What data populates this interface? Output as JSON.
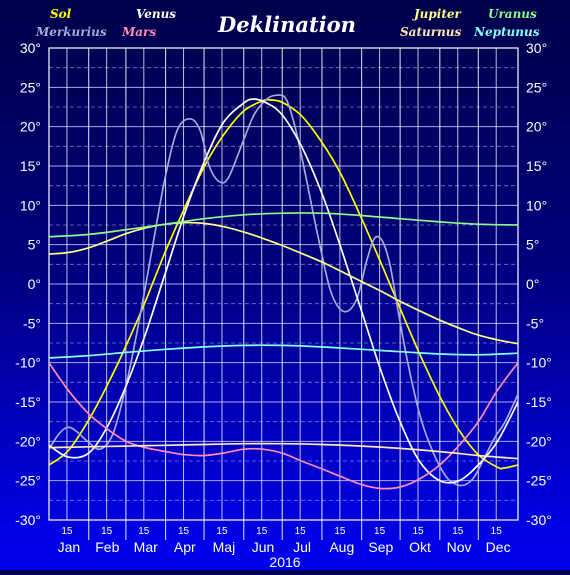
{
  "chart_data": {
    "type": "line",
    "title": "Deklination",
    "xlabel": "2016",
    "ylim": [
      -30,
      30
    ],
    "y_ticks": [
      "30°",
      "25°",
      "20°",
      "15°",
      "10°",
      "5°",
      "0°",
      "-5°",
      "-10°",
      "-15°",
      "-20°",
      "-25°",
      "-30°"
    ],
    "y_tick_values": [
      30,
      25,
      20,
      15,
      10,
      5,
      0,
      -5,
      -10,
      -15,
      -20,
      -25,
      -30
    ],
    "months": [
      "Jan",
      "Feb",
      "Mar",
      "Apr",
      "Maj",
      "Jun",
      "Jul",
      "Aug",
      "Sep",
      "Okt",
      "Nov",
      "Dec"
    ],
    "midmonth_label": "15",
    "grid": true,
    "x_unit": "day of year 2016",
    "xlim": [
      0,
      366
    ],
    "series": [
      {
        "name": "Sol",
        "color": "#ffff00",
        "x": [
          0,
          15,
          31,
          46,
          60,
          75,
          91,
          106,
          121,
          136,
          152,
          167,
          172,
          182,
          197,
          213,
          228,
          244,
          259,
          266,
          274,
          289,
          305,
          320,
          335,
          350,
          355,
          366
        ],
        "values": [
          -23.0,
          -21.2,
          -17.3,
          -12.7,
          -7.9,
          -2.3,
          4.2,
          9.7,
          14.9,
          18.9,
          22.0,
          23.3,
          23.4,
          23.1,
          21.4,
          18.0,
          13.9,
          8.3,
          2.7,
          0.0,
          -3.1,
          -8.8,
          -14.3,
          -18.6,
          -21.7,
          -23.3,
          -23.4,
          -23.0
        ]
      },
      {
        "name": "Merkurius",
        "color": "#a8a8d8",
        "x": [
          0,
          8,
          15,
          22,
          30,
          40,
          50,
          60,
          70,
          80,
          90,
          100,
          110,
          118,
          125,
          133,
          140,
          150,
          160,
          170,
          178,
          185,
          192,
          200,
          210,
          220,
          230,
          240,
          248,
          254,
          260,
          266,
          272,
          280,
          290,
          300,
          310,
          318,
          325,
          332,
          340,
          348,
          356,
          366
        ],
        "values": [
          -21.0,
          -19.0,
          -18.2,
          -18.8,
          -20.0,
          -21.0,
          -19.0,
          -13.0,
          -5.0,
          4.0,
          13.0,
          19.5,
          21.0,
          19.5,
          15.0,
          13.0,
          13.5,
          17.5,
          21.5,
          23.5,
          24.0,
          23.5,
          20.0,
          14.0,
          6.0,
          -1.0,
          -3.5,
          -2.0,
          3.0,
          5.8,
          5.5,
          2.5,
          -3.0,
          -10.0,
          -17.0,
          -21.5,
          -24.5,
          -25.5,
          -25.5,
          -24.5,
          -22.0,
          -19.5,
          -17.5,
          -14.0
        ]
      },
      {
        "name": "Venus",
        "color": "#ffffff",
        "x": [
          0,
          15,
          31,
          46,
          60,
          75,
          91,
          106,
          121,
          136,
          152,
          160,
          170,
          182,
          197,
          213,
          228,
          244,
          259,
          274,
          289,
          305,
          320,
          335,
          350,
          366
        ],
        "values": [
          -20.5,
          -22.0,
          -21.5,
          -18.0,
          -13.0,
          -6.5,
          1.5,
          9.0,
          15.5,
          20.5,
          23.0,
          23.5,
          23.0,
          21.5,
          17.5,
          11.5,
          4.5,
          -3.5,
          -11.0,
          -17.5,
          -22.5,
          -25.0,
          -25.0,
          -23.0,
          -20.0,
          -15.0
        ]
      },
      {
        "name": "Mars",
        "color": "#ff8cb4",
        "x": [
          0,
          15,
          31,
          46,
          60,
          75,
          91,
          106,
          121,
          136,
          152,
          167,
          182,
          197,
          213,
          228,
          244,
          259,
          274,
          289,
          305,
          320,
          335,
          350,
          366
        ],
        "values": [
          -10.0,
          -13.5,
          -16.5,
          -18.5,
          -20.0,
          -20.8,
          -21.3,
          -21.7,
          -21.8,
          -21.5,
          -21.0,
          -21.0,
          -21.5,
          -22.5,
          -23.5,
          -24.5,
          -25.5,
          -26.0,
          -25.8,
          -24.8,
          -23.0,
          -20.5,
          -17.5,
          -13.5,
          -10.0
        ]
      },
      {
        "name": "Jupiter",
        "color": "#ffff88",
        "x": [
          0,
          15,
          31,
          46,
          60,
          75,
          91,
          106,
          121,
          136,
          152,
          167,
          182,
          197,
          213,
          228,
          244,
          259,
          274,
          289,
          305,
          320,
          335,
          350,
          366
        ],
        "values": [
          3.8,
          4.0,
          4.6,
          5.5,
          6.4,
          7.1,
          7.6,
          7.8,
          7.7,
          7.3,
          6.6,
          5.8,
          4.9,
          3.9,
          2.8,
          1.6,
          0.3,
          -0.9,
          -2.2,
          -3.4,
          -4.6,
          -5.6,
          -6.5,
          -7.1,
          -7.6
        ]
      },
      {
        "name": "Saturnus",
        "color": "#ffe9b0",
        "x": [
          0,
          31,
          60,
          91,
          121,
          152,
          182,
          213,
          244,
          274,
          305,
          335,
          366
        ],
        "values": [
          -20.8,
          -20.7,
          -20.6,
          -20.5,
          -20.4,
          -20.3,
          -20.3,
          -20.4,
          -20.6,
          -20.9,
          -21.3,
          -21.8,
          -22.2
        ]
      },
      {
        "name": "Uranus",
        "color": "#88ff88",
        "x": [
          0,
          31,
          60,
          91,
          121,
          152,
          182,
          213,
          244,
          274,
          305,
          335,
          366
        ],
        "values": [
          6.0,
          6.3,
          6.9,
          7.6,
          8.3,
          8.8,
          9.0,
          9.0,
          8.7,
          8.3,
          7.9,
          7.6,
          7.5
        ]
      },
      {
        "name": "Neptunus",
        "color": "#88ffff",
        "x": [
          0,
          31,
          60,
          91,
          121,
          152,
          182,
          213,
          244,
          274,
          305,
          335,
          366
        ],
        "values": [
          -9.4,
          -9.1,
          -8.7,
          -8.3,
          -8.0,
          -7.8,
          -7.8,
          -8.0,
          -8.3,
          -8.6,
          -8.9,
          -9.0,
          -8.8
        ]
      }
    ],
    "legend_left": [
      {
        "row": 0,
        "col": 0,
        "name": "Sol",
        "color": "#ffff00"
      },
      {
        "row": 0,
        "col": 1,
        "name": "Venus",
        "color": "#ffffff"
      },
      {
        "row": 1,
        "col": 0,
        "name": "Merkurius",
        "color": "#a8a8d8"
      },
      {
        "row": 1,
        "col": 1,
        "name": "Mars",
        "color": "#ff8cb4"
      }
    ],
    "legend_right": [
      {
        "row": 0,
        "col": 0,
        "name": "Jupiter",
        "color": "#ffff88"
      },
      {
        "row": 0,
        "col": 1,
        "name": "Uranus",
        "color": "#88ff88"
      },
      {
        "row": 1,
        "col": 0,
        "name": "Saturnus",
        "color": "#ffe9b0"
      },
      {
        "row": 1,
        "col": 1,
        "name": "Neptunus",
        "color": "#88ffff"
      }
    ]
  }
}
